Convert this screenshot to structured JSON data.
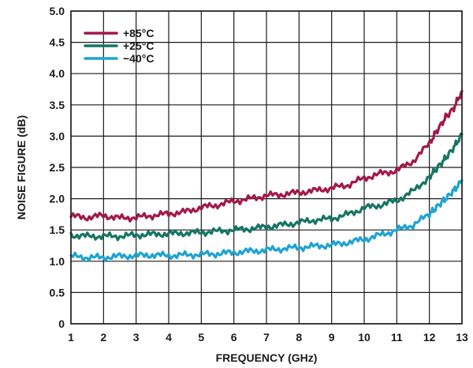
{
  "chart_data": {
    "type": "line",
    "xlabel": "FREQUENCY (GHz)",
    "ylabel": "NOISE FIGURE (dB)",
    "xlim": [
      1,
      13
    ],
    "ylim": [
      0,
      5.0
    ],
    "x_ticks": [
      "1",
      "2",
      "3",
      "4",
      "5",
      "6",
      "7",
      "8",
      "9",
      "10",
      "11",
      "12",
      "13"
    ],
    "y_ticks": [
      "0",
      "0.5",
      "1.0",
      "1.5",
      "2.0",
      "2.5",
      "3.0",
      "3.5",
      "4.0",
      "4.5",
      "5.0"
    ],
    "grid": true,
    "legend_position": "top-left",
    "x": [
      1,
      1.5,
      2,
      2.5,
      3,
      3.5,
      4,
      4.5,
      5,
      5.5,
      6,
      6.5,
      7,
      7.5,
      8,
      8.5,
      9,
      9.5,
      10,
      10.5,
      11,
      11.5,
      12,
      12.25,
      12.5,
      12.75,
      13
    ],
    "series": [
      {
        "name": "+85°C",
        "color": "#a3184a",
        "values": [
          1.72,
          1.7,
          1.73,
          1.69,
          1.7,
          1.73,
          1.76,
          1.79,
          1.86,
          1.9,
          1.96,
          2.0,
          2.05,
          2.07,
          2.1,
          2.13,
          2.17,
          2.22,
          2.33,
          2.4,
          2.45,
          2.6,
          2.88,
          3.1,
          3.3,
          3.45,
          3.72
        ]
      },
      {
        "name": "+25°C",
        "color": "#167565",
        "values": [
          1.42,
          1.4,
          1.4,
          1.4,
          1.42,
          1.43,
          1.44,
          1.45,
          1.46,
          1.48,
          1.5,
          1.52,
          1.55,
          1.58,
          1.62,
          1.66,
          1.68,
          1.75,
          1.85,
          1.9,
          1.97,
          2.12,
          2.35,
          2.5,
          2.65,
          2.82,
          3.03
        ]
      },
      {
        "name": "−40°C",
        "color": "#1ea3d3",
        "values": [
          1.08,
          1.06,
          1.06,
          1.08,
          1.09,
          1.1,
          1.09,
          1.1,
          1.11,
          1.12,
          1.14,
          1.16,
          1.18,
          1.2,
          1.22,
          1.24,
          1.26,
          1.3,
          1.35,
          1.42,
          1.5,
          1.58,
          1.75,
          1.88,
          2.0,
          2.13,
          2.29
        ]
      }
    ]
  }
}
